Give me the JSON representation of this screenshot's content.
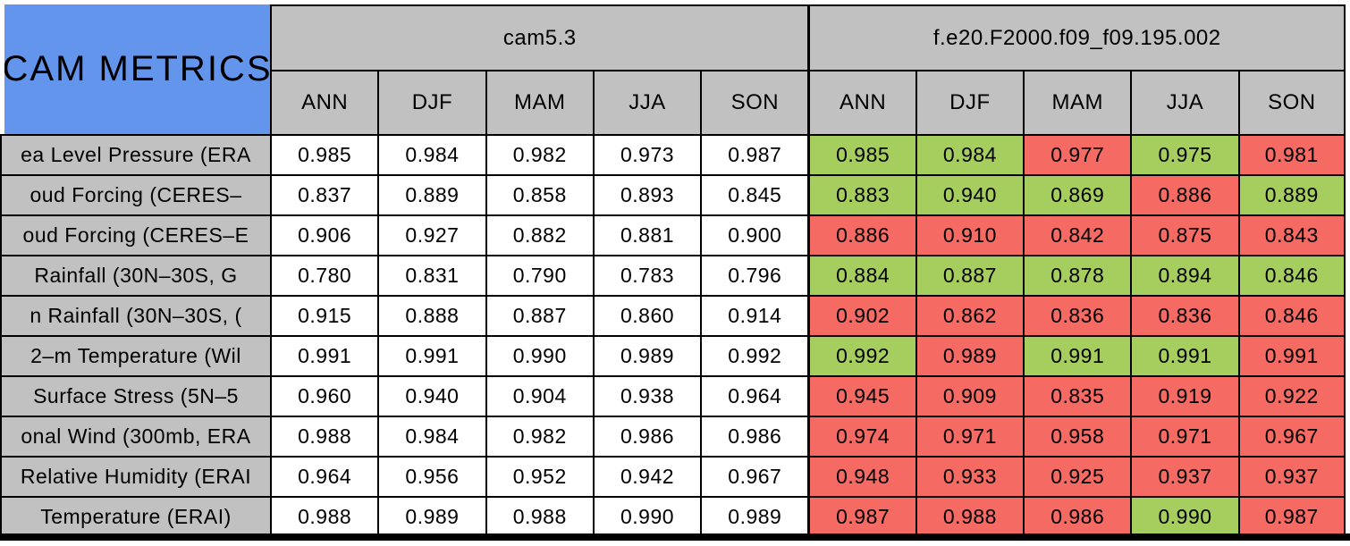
{
  "title": "CAM METRICS",
  "colors": {
    "title_bg": "#6495ED",
    "header_bg": "#C1C1C1",
    "baseline_cell_bg": "#FFFFFF",
    "better_bg": "#A5CE5F",
    "worse_bg": "#F66A64",
    "border": "#000000"
  },
  "chart_data": {
    "type": "table",
    "title": "CAM METRICS",
    "legend_note_colors": {
      "better": "#A5CE5F",
      "worse": "#F66A64"
    },
    "column_groups": [
      {
        "label": "cam5.3",
        "sub_columns": [
          "ANN",
          "DJF",
          "MAM",
          "JJA",
          "SON"
        ]
      },
      {
        "label": "f.e20.F2000.f09_f09.195.002",
        "sub_columns": [
          "ANN",
          "DJF",
          "MAM",
          "JJA",
          "SON"
        ]
      }
    ],
    "rows": [
      {
        "label": "ea Level Pressure (ERA",
        "cam53": [
          "0.985",
          "0.984",
          "0.982",
          "0.973",
          "0.987"
        ],
        "experiment": [
          "0.985",
          "0.984",
          "0.977",
          "0.975",
          "0.981"
        ],
        "experiment_status": [
          "better",
          "better",
          "worse",
          "better",
          "worse"
        ]
      },
      {
        "label": "oud Forcing (CERES–",
        "cam53": [
          "0.837",
          "0.889",
          "0.858",
          "0.893",
          "0.845"
        ],
        "experiment": [
          "0.883",
          "0.940",
          "0.869",
          "0.886",
          "0.889"
        ],
        "experiment_status": [
          "better",
          "better",
          "better",
          "worse",
          "better"
        ]
      },
      {
        "label": "oud Forcing (CERES–E",
        "cam53": [
          "0.906",
          "0.927",
          "0.882",
          "0.881",
          "0.900"
        ],
        "experiment": [
          "0.886",
          "0.910",
          "0.842",
          "0.875",
          "0.843"
        ],
        "experiment_status": [
          "worse",
          "worse",
          "worse",
          "worse",
          "worse"
        ]
      },
      {
        "label": "Rainfall (30N–30S, G",
        "cam53": [
          "0.780",
          "0.831",
          "0.790",
          "0.783",
          "0.796"
        ],
        "experiment": [
          "0.884",
          "0.887",
          "0.878",
          "0.894",
          "0.846"
        ],
        "experiment_status": [
          "better",
          "better",
          "better",
          "better",
          "better"
        ]
      },
      {
        "label": "n Rainfall (30N–30S, (",
        "cam53": [
          "0.915",
          "0.888",
          "0.887",
          "0.860",
          "0.914"
        ],
        "experiment": [
          "0.902",
          "0.862",
          "0.836",
          "0.836",
          "0.846"
        ],
        "experiment_status": [
          "worse",
          "worse",
          "worse",
          "worse",
          "worse"
        ]
      },
      {
        "label": "2–m Temperature (Wil",
        "cam53": [
          "0.991",
          "0.991",
          "0.990",
          "0.989",
          "0.992"
        ],
        "experiment": [
          "0.992",
          "0.989",
          "0.991",
          "0.991",
          "0.991"
        ],
        "experiment_status": [
          "better",
          "worse",
          "better",
          "better",
          "worse"
        ]
      },
      {
        "label": "Surface Stress (5N–5",
        "cam53": [
          "0.960",
          "0.940",
          "0.904",
          "0.938",
          "0.964"
        ],
        "experiment": [
          "0.945",
          "0.909",
          "0.835",
          "0.919",
          "0.922"
        ],
        "experiment_status": [
          "worse",
          "worse",
          "worse",
          "worse",
          "worse"
        ]
      },
      {
        "label": "onal Wind (300mb, ERA",
        "cam53": [
          "0.988",
          "0.984",
          "0.982",
          "0.986",
          "0.986"
        ],
        "experiment": [
          "0.974",
          "0.971",
          "0.958",
          "0.971",
          "0.967"
        ],
        "experiment_status": [
          "worse",
          "worse",
          "worse",
          "worse",
          "worse"
        ]
      },
      {
        "label": "Relative Humidity (ERAI",
        "cam53": [
          "0.964",
          "0.956",
          "0.952",
          "0.942",
          "0.967"
        ],
        "experiment": [
          "0.948",
          "0.933",
          "0.925",
          "0.937",
          "0.937"
        ],
        "experiment_status": [
          "worse",
          "worse",
          "worse",
          "worse",
          "worse"
        ]
      },
      {
        "label": "Temperature (ERAI)",
        "cam53": [
          "0.988",
          "0.989",
          "0.988",
          "0.990",
          "0.989"
        ],
        "experiment": [
          "0.987",
          "0.988",
          "0.986",
          "0.990",
          "0.987"
        ],
        "experiment_status": [
          "worse",
          "worse",
          "worse",
          "better",
          "worse"
        ]
      }
    ]
  }
}
